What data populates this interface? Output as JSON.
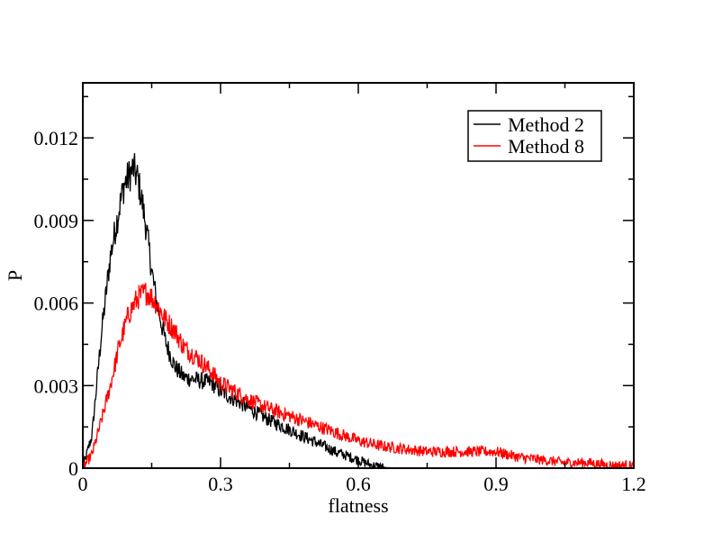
{
  "chart_data": {
    "type": "line",
    "xlabel": "flatness",
    "ylabel": "P",
    "xlim": [
      0,
      1.2
    ],
    "ylim": [
      0,
      0.014
    ],
    "x_ticks": [
      0,
      0.3,
      0.6,
      0.9,
      1.2
    ],
    "x_tick_labels": [
      "0",
      "0.3",
      "0.6",
      "0.9",
      "1.2"
    ],
    "y_ticks": [
      0,
      0.003,
      0.006,
      0.009,
      0.012
    ],
    "y_tick_labels": [
      "0",
      "0.003",
      "0.006",
      "0.009",
      "0.012"
    ],
    "grid": false,
    "legend_position": "top-right",
    "series": [
      {
        "name": "Method 2",
        "color": "#000000",
        "x": [
          0.0,
          0.02,
          0.04,
          0.06,
          0.08,
          0.09,
          0.1,
          0.11,
          0.12,
          0.13,
          0.14,
          0.15,
          0.16,
          0.18,
          0.2,
          0.22,
          0.25,
          0.28,
          0.3,
          0.33,
          0.36,
          0.4,
          0.45,
          0.5,
          0.55,
          0.6,
          0.63,
          0.66,
          0.7
        ],
        "y": [
          0.0,
          0.0012,
          0.0048,
          0.0077,
          0.0095,
          0.0103,
          0.0106,
          0.0109,
          0.0105,
          0.0096,
          0.0085,
          0.0072,
          0.0061,
          0.0046,
          0.0037,
          0.0033,
          0.0032,
          0.0031,
          0.0028,
          0.0025,
          0.0022,
          0.0018,
          0.0014,
          0.001,
          0.0006,
          0.0003,
          0.0001,
          2e-05,
          0.0
        ]
      },
      {
        "name": "Method 8",
        "color": "#ff0000",
        "x": [
          0.0,
          0.02,
          0.04,
          0.06,
          0.08,
          0.1,
          0.12,
          0.14,
          0.16,
          0.18,
          0.2,
          0.22,
          0.25,
          0.28,
          0.3,
          0.33,
          0.36,
          0.4,
          0.45,
          0.5,
          0.55,
          0.6,
          0.65,
          0.7,
          0.75,
          0.8,
          0.85,
          0.9,
          0.95,
          1.0,
          1.05,
          1.1,
          1.15,
          1.2
        ],
        "y": [
          0.0,
          0.0005,
          0.0017,
          0.003,
          0.0045,
          0.0056,
          0.0062,
          0.0064,
          0.006,
          0.0054,
          0.005,
          0.0044,
          0.004,
          0.0035,
          0.0031,
          0.0028,
          0.0025,
          0.0022,
          0.0019,
          0.0016,
          0.0013,
          0.001,
          0.0008,
          0.0007,
          0.0006,
          0.0006,
          0.0006,
          0.0006,
          0.0004,
          0.0003,
          0.0002,
          0.0002,
          0.0001,
          0.0001
        ]
      }
    ]
  }
}
